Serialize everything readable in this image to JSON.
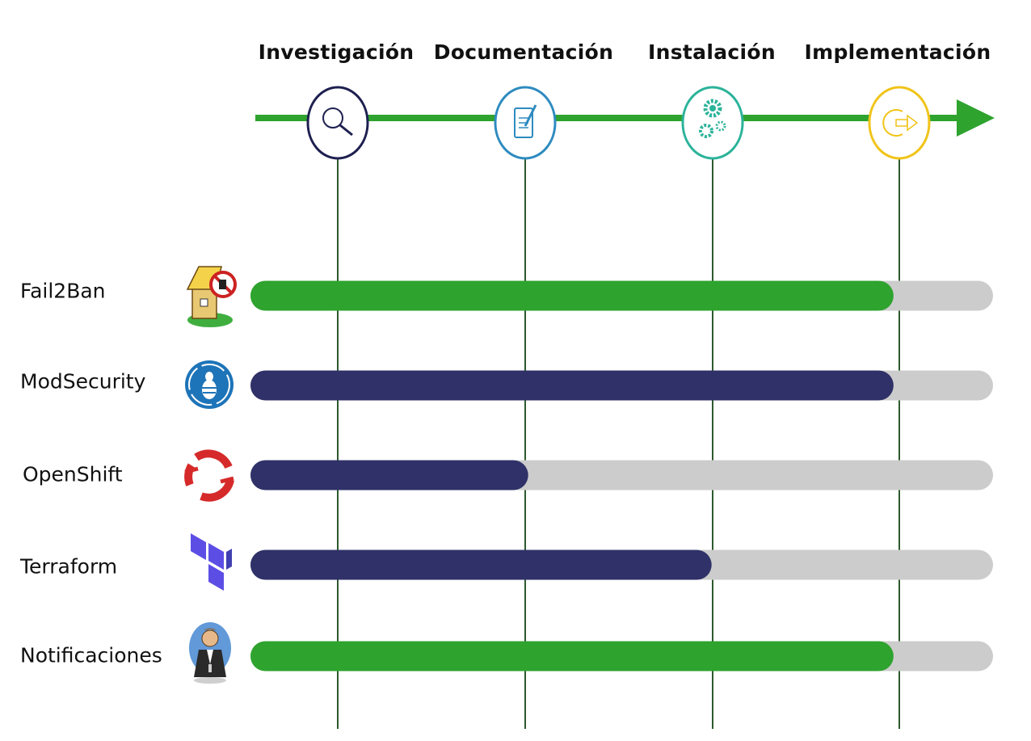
{
  "phases": [
    {
      "label": "Investigación",
      "icon": "magnifier-icon",
      "color": "#1e2050"
    },
    {
      "label": "Documentación",
      "icon": "document-pen-icon",
      "color": "#2e8bc0"
    },
    {
      "label": "Instalación",
      "icon": "gears-icon",
      "color": "#2bb39a"
    },
    {
      "label": "Implementación",
      "icon": "sign-in-icon",
      "color": "#f0c419"
    }
  ],
  "rows": [
    {
      "label": "Fail2Ban",
      "icon": "fail2ban-logo",
      "progress": 0.866,
      "color": "#2ea32e"
    },
    {
      "label": "ModSecurity",
      "icon": "modsecurity-logo",
      "progress": 0.866,
      "color": "#2f3168"
    },
    {
      "label": "OpenShift",
      "icon": "openshift-logo",
      "progress": 0.374,
      "color": "#2f3168"
    },
    {
      "label": "Terraform",
      "icon": "terraform-logo",
      "progress": 0.621,
      "color": "#2f3168"
    },
    {
      "label": "Notificaciones",
      "icon": "butler-logo",
      "progress": 0.866,
      "color": "#2ea32e"
    }
  ],
  "colors": {
    "timeline": "#2ea32e",
    "track": "#cccccc",
    "guide": "#2d5a2d"
  }
}
